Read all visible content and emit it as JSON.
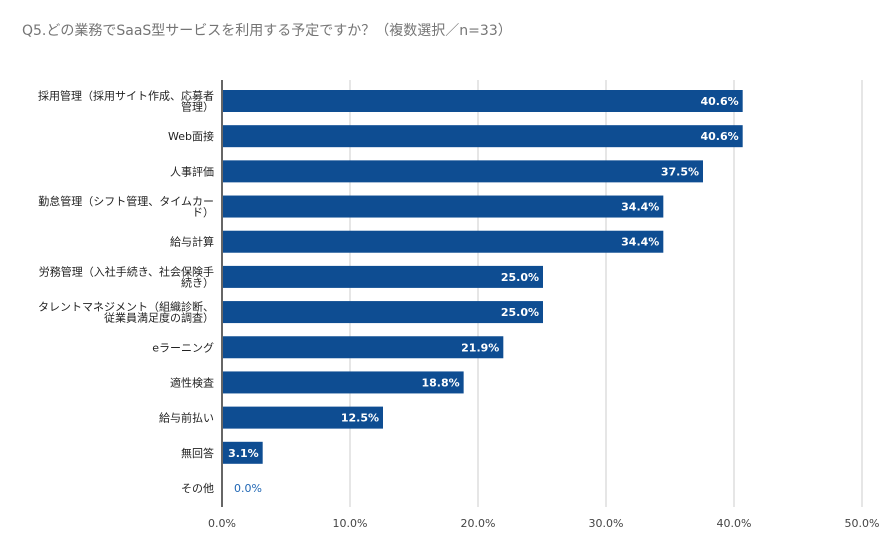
{
  "chart_data": {
    "type": "bar",
    "orientation": "horizontal",
    "title": "Q5.どの業務でSaaS型サービスを利用する予定ですか？（複数選択／n=33）",
    "categories": [
      "採用管理（採用サイト作成、応募者管理）",
      "Web面接",
      "人事評価",
      "勤怠管理（シフト管理、タイムカード）",
      "給与計算",
      "労務管理（入社手続き、社会保険手続き）",
      "タレントマネジメント（組織診断、従業員満足度の調査）",
      "eラーニング",
      "適性検査",
      "給与前払い",
      "無回答",
      "その他"
    ],
    "category_lines": [
      [
        "採用管理（採用サイト作成、応募者",
        "管理）"
      ],
      [
        "Web面接"
      ],
      [
        "人事評価"
      ],
      [
        "勤怠管理（シフト管理、タイムカー",
        "ド）"
      ],
      [
        "給与計算"
      ],
      [
        "労務管理（入社手続き、社会保険手",
        "続き）"
      ],
      [
        "タレントマネジメント（組織診断、",
        "従業員満足度の調査）"
      ],
      [
        "eラーニング"
      ],
      [
        "適性検査"
      ],
      [
        "給与前払い"
      ],
      [
        "無回答"
      ],
      [
        "その他"
      ]
    ],
    "values": [
      40.6,
      40.6,
      37.5,
      34.4,
      34.4,
      25.0,
      25.0,
      21.9,
      18.8,
      12.5,
      3.1,
      0.0
    ],
    "data_labels": [
      "40.6%",
      "40.6%",
      "37.5%",
      "34.4%",
      "34.4%",
      "25.0%",
      "25.0%",
      "21.9%",
      "18.8%",
      "12.5%",
      "3.1%",
      "0.0%"
    ],
    "xlim": [
      0,
      50
    ],
    "xticks": [
      "0.0%",
      "10.0%",
      "20.0%",
      "30.0%",
      "40.0%",
      "50.0%"
    ],
    "grid": true,
    "colors": {
      "bar": "#0e4d92",
      "grid": "#cccccc",
      "axis": "#333333",
      "outside_label": "#1f66b4"
    }
  }
}
